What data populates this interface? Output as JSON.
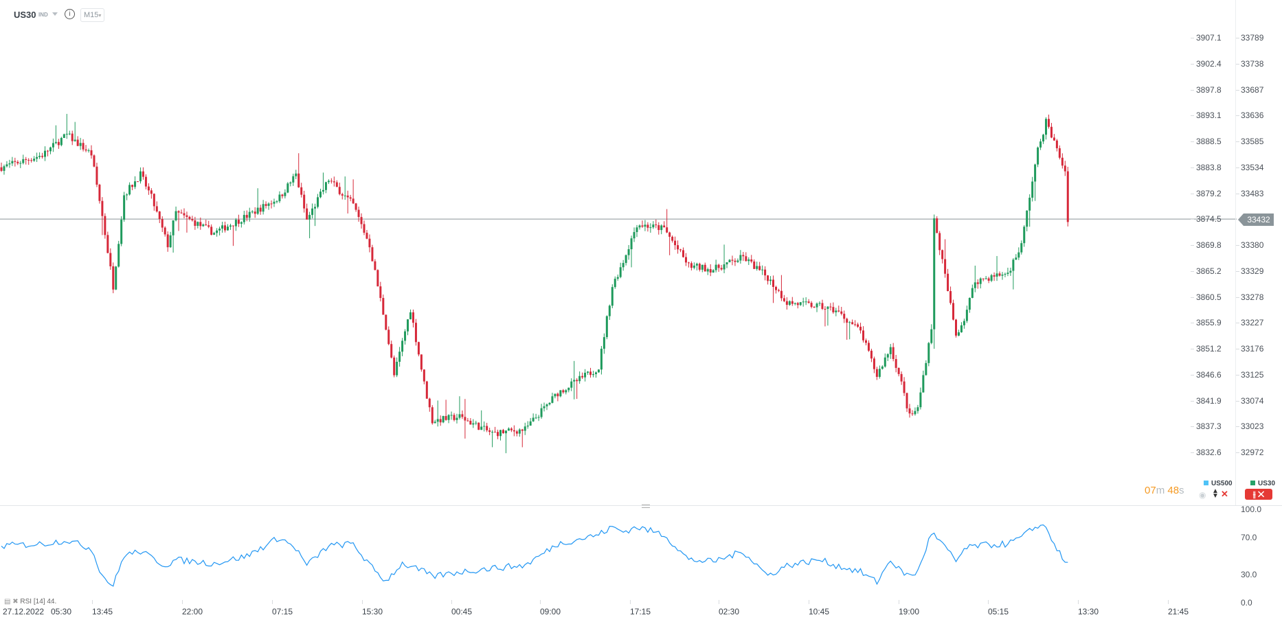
{
  "header": {
    "symbol": "US30",
    "type": "IND",
    "info_icon": "info-icon",
    "timeframe": "M15"
  },
  "colors": {
    "up": "#1f9a5c",
    "down": "#d62839",
    "rsi": "#2196f3",
    "price_line": "#8a9499",
    "countdown": "#f59a23",
    "us500": "#4fc3f7",
    "us30": "#26a269"
  },
  "axis_left": [
    "3907.1",
    "3902.4",
    "3897.8",
    "3893.1",
    "3888.5",
    "3883.8",
    "3879.2",
    "3874.5",
    "3869.8",
    "3865.2",
    "3860.5",
    "3855.9",
    "3851.2",
    "3846.6",
    "3841.9",
    "3837.3",
    "3832.6"
  ],
  "axis_right": [
    "33789",
    "33738",
    "33687",
    "33636",
    "33585",
    "33534",
    "33483",
    "33432",
    "33380",
    "33329",
    "33278",
    "33227",
    "33176",
    "33125",
    "33074",
    "33023",
    "32972"
  ],
  "current_price": "33432",
  "countdown": {
    "min": "07",
    "min_unit": "m",
    "sec": "48",
    "sec_unit": "s"
  },
  "legend": {
    "us500": "US500",
    "us30": "US30"
  },
  "rsi": {
    "label": "RSI",
    "period": "[14]",
    "value": "44.",
    "axis": [
      "100.0",
      "70.0",
      "30.0",
      "0.0"
    ]
  },
  "time_axis": [
    "27.12.2022",
    "05:30",
    "13:45",
    "22:00",
    "07:15",
    "15:30",
    "00:45",
    "09:00",
    "17:15",
    "02:30",
    "10:45",
    "19:00",
    "05:15",
    "13:30",
    "21:45"
  ],
  "chart_data": {
    "type": "candlestick",
    "price_range": [
      32972,
      33789
    ],
    "close_waypoints": [
      [
        0,
        33534
      ],
      [
        15,
        33558
      ],
      [
        24,
        33598
      ],
      [
        33,
        33560
      ],
      [
        37,
        33438
      ],
      [
        41,
        33300
      ],
      [
        45,
        33480
      ],
      [
        51,
        33520
      ],
      [
        55,
        33475
      ],
      [
        61,
        33381
      ],
      [
        64,
        33445
      ],
      [
        78,
        33405
      ],
      [
        90,
        33438
      ],
      [
        102,
        33475
      ],
      [
        108,
        33520
      ],
      [
        112,
        33430
      ],
      [
        120,
        33510
      ],
      [
        129,
        33460
      ],
      [
        135,
        33381
      ],
      [
        141,
        33220
      ],
      [
        144,
        33124
      ],
      [
        150,
        33255
      ],
      [
        155,
        33108
      ],
      [
        158,
        33035
      ],
      [
        168,
        33043
      ],
      [
        180,
        33010
      ],
      [
        192,
        33018
      ],
      [
        204,
        33090
      ],
      [
        219,
        33140
      ],
      [
        224,
        33300
      ],
      [
        228,
        33349
      ],
      [
        233,
        33422
      ],
      [
        243,
        33413
      ],
      [
        252,
        33340
      ],
      [
        261,
        33333
      ],
      [
        272,
        33357
      ],
      [
        281,
        33317
      ],
      [
        288,
        33268
      ],
      [
        300,
        33260
      ],
      [
        306,
        33252
      ],
      [
        315,
        33211
      ],
      [
        321,
        33124
      ],
      [
        326,
        33180
      ],
      [
        330,
        33108
      ],
      [
        333,
        33043
      ],
      [
        336,
        33059
      ],
      [
        341,
        33220
      ],
      [
        342,
        33430
      ],
      [
        345,
        33349
      ],
      [
        350,
        33204
      ],
      [
        353,
        33236
      ],
      [
        357,
        33310
      ],
      [
        369,
        33326
      ],
      [
        374,
        33381
      ],
      [
        377,
        33478
      ],
      [
        380,
        33567
      ],
      [
        383,
        33624
      ],
      [
        386,
        33583
      ],
      [
        390,
        33526
      ],
      [
        391,
        33432
      ]
    ],
    "rsi_waypoints": [
      [
        0,
        61
      ],
      [
        15,
        63
      ],
      [
        24,
        67
      ],
      [
        33,
        58
      ],
      [
        37,
        29
      ],
      [
        41,
        18
      ],
      [
        45,
        51
      ],
      [
        51,
        55
      ],
      [
        60,
        40
      ],
      [
        64,
        46
      ],
      [
        78,
        42
      ],
      [
        90,
        50
      ],
      [
        102,
        70
      ],
      [
        108,
        58
      ],
      [
        112,
        40
      ],
      [
        120,
        61
      ],
      [
        129,
        63
      ],
      [
        135,
        40
      ],
      [
        141,
        23
      ],
      [
        144,
        33
      ],
      [
        147,
        42
      ],
      [
        155,
        33
      ],
      [
        158,
        28
      ],
      [
        168,
        33
      ],
      [
        180,
        37
      ],
      [
        192,
        40
      ],
      [
        204,
        63
      ],
      [
        219,
        73
      ],
      [
        224,
        81
      ],
      [
        228,
        76
      ],
      [
        233,
        81
      ],
      [
        243,
        73
      ],
      [
        252,
        46
      ],
      [
        261,
        44
      ],
      [
        272,
        55
      ],
      [
        281,
        29
      ],
      [
        288,
        40
      ],
      [
        300,
        46
      ],
      [
        306,
        40
      ],
      [
        315,
        33
      ],
      [
        321,
        22
      ],
      [
        326,
        46
      ],
      [
        330,
        33
      ],
      [
        333,
        29
      ],
      [
        336,
        33
      ],
      [
        341,
        75
      ],
      [
        345,
        63
      ],
      [
        350,
        44
      ],
      [
        353,
        57
      ],
      [
        357,
        61
      ],
      [
        369,
        63
      ],
      [
        374,
        70
      ],
      [
        380,
        83
      ],
      [
        383,
        81
      ],
      [
        386,
        63
      ],
      [
        390,
        42
      ]
    ],
    "rsi_range": [
      0,
      100
    ]
  }
}
